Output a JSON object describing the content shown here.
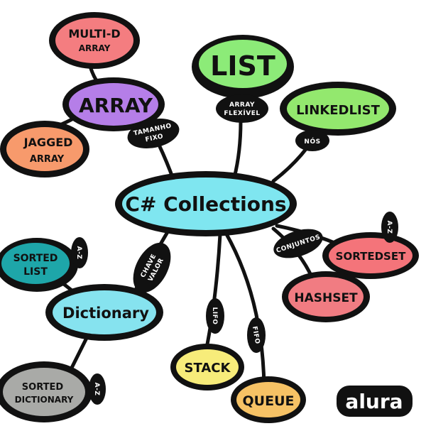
{
  "diagram": {
    "center": {
      "label": "C# Collections",
      "color": "#7fe6f0"
    },
    "nodes": [
      {
        "id": "multid",
        "lines": [
          "MULTI-D",
          "ARRAY"
        ],
        "color": "#f47d80"
      },
      {
        "id": "array",
        "lines": [
          "ARRAY"
        ],
        "color": "#b57ee8"
      },
      {
        "id": "jagged",
        "lines": [
          "JAGGED",
          "ARRAY"
        ],
        "color": "#f79a6c"
      },
      {
        "id": "list",
        "lines": [
          "LIST"
        ],
        "color": "#8ceb78"
      },
      {
        "id": "linkedlist",
        "lines": [
          "LINKEDLIST"
        ],
        "color": "#93e86e"
      },
      {
        "id": "sortedlist",
        "lines": [
          "SORTED",
          "LIST"
        ],
        "color": "#1ea6a9"
      },
      {
        "id": "dictionary",
        "lines": [
          "Dictionary"
        ],
        "color": "#86e3ef"
      },
      {
        "id": "sorteddictionary",
        "lines": [
          "SORTED",
          "DICTIONARY"
        ],
        "color": "#a9aaa7"
      },
      {
        "id": "stack",
        "lines": [
          "STACK"
        ],
        "color": "#f7ec7a"
      },
      {
        "id": "queue",
        "lines": [
          "QUEUE"
        ],
        "color": "#f6c265"
      },
      {
        "id": "sortedset",
        "lines": [
          "SORTEDSET"
        ],
        "color": "#f4747a"
      },
      {
        "id": "hashset",
        "lines": [
          "HASHSET"
        ],
        "color": "#f17c82"
      }
    ],
    "edge_labels": [
      {
        "id": "tamanho-fixo",
        "lines": [
          "TAMANHO",
          "FIXO"
        ]
      },
      {
        "id": "array-flexivel",
        "lines": [
          "ARRAY",
          "FLEXÍVEL"
        ]
      },
      {
        "id": "nos",
        "lines": [
          "NÓS"
        ]
      },
      {
        "id": "chave-valor",
        "lines": [
          "CHAVE",
          "VALOR"
        ]
      },
      {
        "id": "lifo",
        "lines": [
          "LIFO"
        ]
      },
      {
        "id": "fifo",
        "lines": [
          "FIFO"
        ]
      },
      {
        "id": "conjuntos",
        "lines": [
          "CONJUNTOS"
        ]
      },
      {
        "id": "az-sortedlist",
        "lines": [
          "A-Z"
        ]
      },
      {
        "id": "az-sortedset",
        "lines": [
          "A-Z"
        ]
      },
      {
        "id": "az-sorteddict",
        "lines": [
          "A-Z"
        ]
      }
    ]
  },
  "logo": {
    "text": "alura"
  }
}
